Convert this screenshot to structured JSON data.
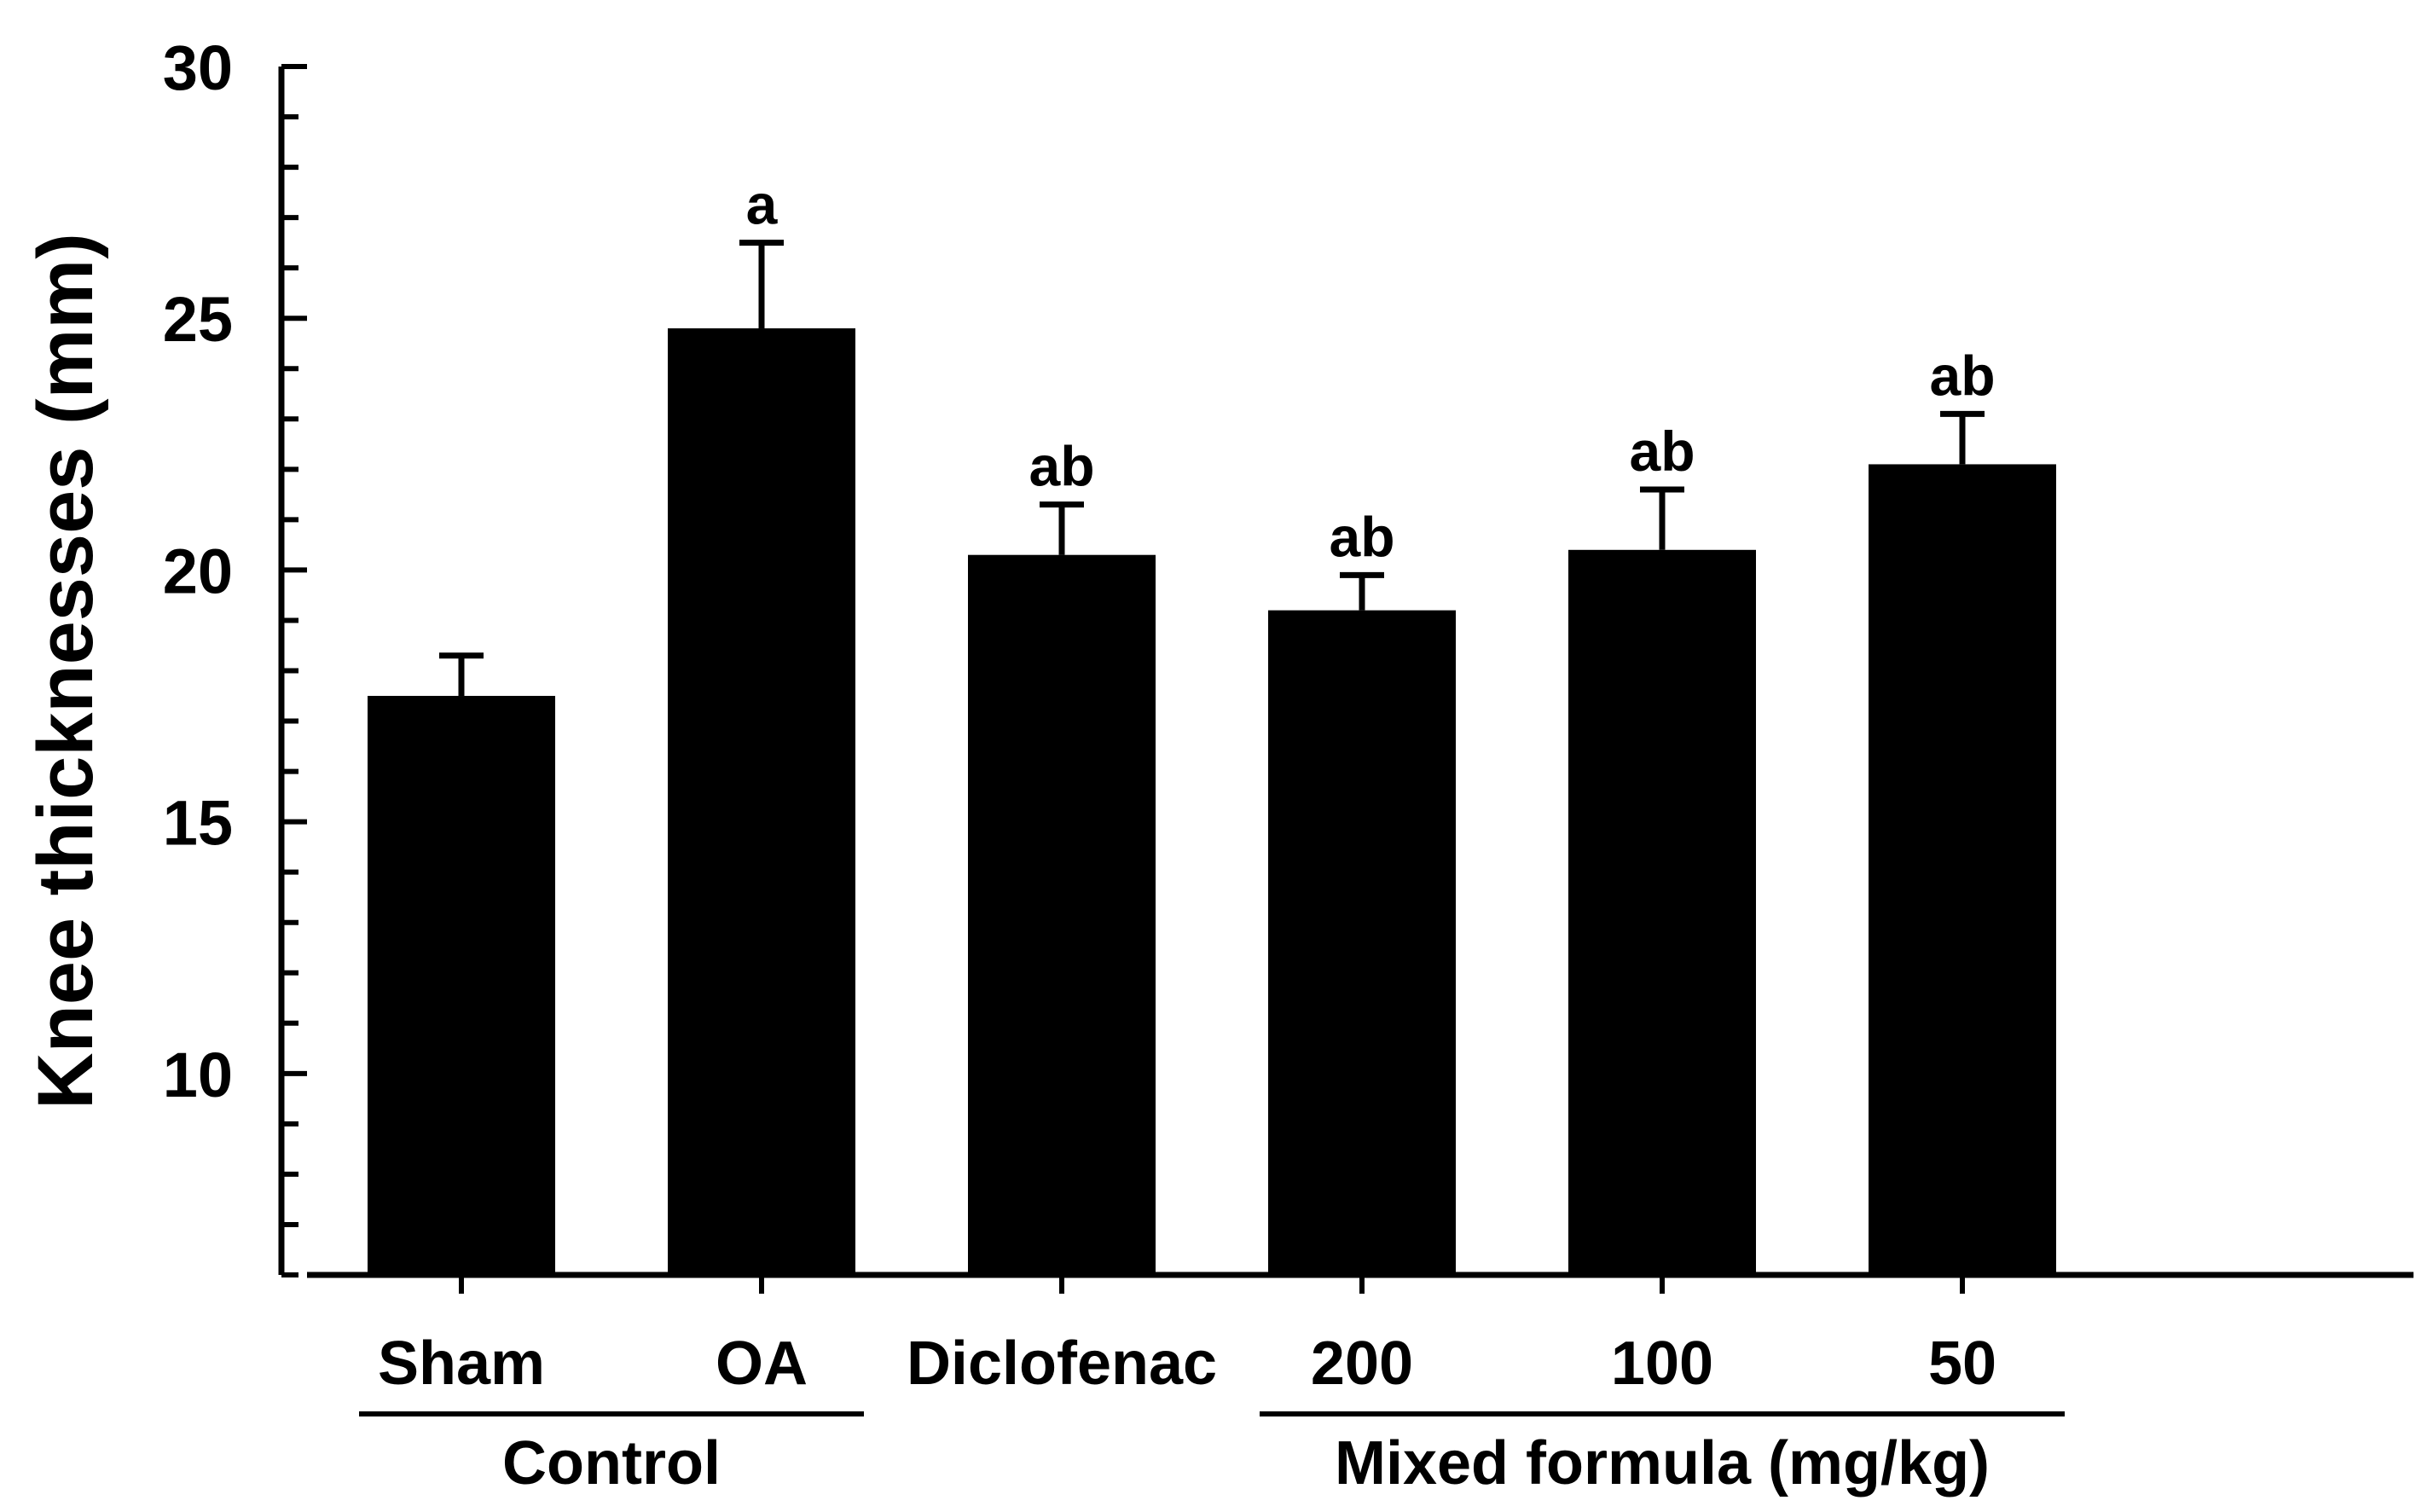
{
  "chart_data": {
    "type": "bar",
    "title": "",
    "ylabel": "Knee thicknesses (mm)",
    "xlabel": "",
    "ylim": [
      6,
      30
    ],
    "yticks": [
      10,
      15,
      20,
      25,
      30
    ],
    "y_minor_step": 1,
    "grid": false,
    "legend": "none",
    "categories": [
      "Sham",
      "OA",
      "Diclofenac",
      "200",
      "100",
      "50"
    ],
    "values": [
      17.5,
      24.8,
      20.3,
      19.2,
      20.4,
      22.1
    ],
    "errors": [
      0.8,
      1.7,
      1.0,
      0.7,
      1.2,
      1.0
    ],
    "significance": [
      "",
      "a",
      "ab",
      "ab",
      "ab",
      "ab"
    ],
    "bar_color": "#000000",
    "group_labels": [
      {
        "label": "Control",
        "categories": [
          "Sham",
          "OA"
        ]
      },
      {
        "label": "Mixed formula (mg/kg)",
        "categories": [
          "200",
          "100",
          "50"
        ]
      }
    ]
  }
}
